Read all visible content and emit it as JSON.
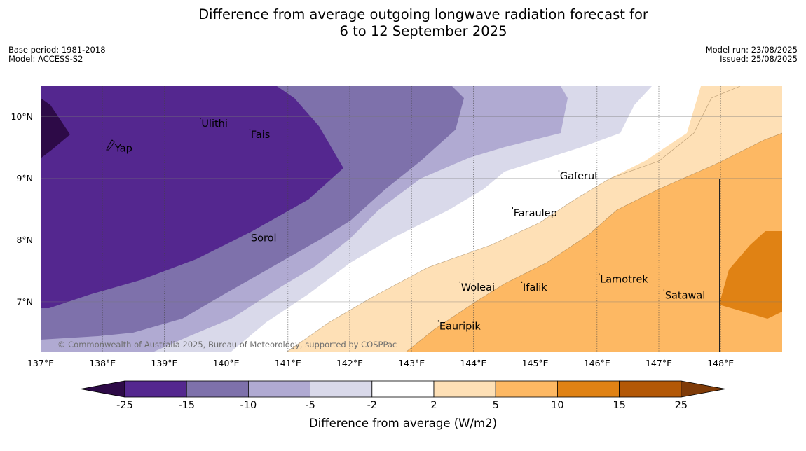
{
  "title_line1": "Difference from average outgoing longwave radiation forecast for",
  "title_line2": "6 to 12 September 2025",
  "base_period": "Base period: 1981-2018",
  "model": "Model: ACCESS-S2",
  "model_run": "Model run: 23/08/2025",
  "issued": "Issued: 25/08/2025",
  "copyright": "© Commonwealth of Australia 2025, Bureau of Meteorology, supported by COSPPac",
  "map": {
    "lon_range": [
      137,
      149
    ],
    "lat_range": [
      6.2,
      10.5
    ],
    "lon_ticks": [
      "137°E",
      "138°E",
      "139°E",
      "140°E",
      "141°E",
      "142°E",
      "143°E",
      "144°E",
      "145°E",
      "146°E",
      "147°E",
      "148°E"
    ],
    "lat_ticks": [
      "10°N",
      "9°N",
      "8°N",
      "7°N"
    ],
    "places": [
      {
        "name": "Yap",
        "lon": 138.2,
        "lat": 9.5
      },
      {
        "name": "Ulithi",
        "lon": 139.6,
        "lat": 9.9
      },
      {
        "name": "Fais",
        "lon": 140.4,
        "lat": 9.72
      },
      {
        "name": "Gaferut",
        "lon": 145.4,
        "lat": 9.05
      },
      {
        "name": "Faraulep",
        "lon": 144.65,
        "lat": 8.45
      },
      {
        "name": "Sorol",
        "lon": 140.4,
        "lat": 8.05
      },
      {
        "name": "Lamotrek",
        "lon": 146.05,
        "lat": 7.38
      },
      {
        "name": "Woleai",
        "lon": 143.8,
        "lat": 7.25
      },
      {
        "name": "Ifalik",
        "lon": 144.8,
        "lat": 7.25
      },
      {
        "name": "Satawal",
        "lon": 147.1,
        "lat": 7.12
      },
      {
        "name": "Eauripik",
        "lon": 143.45,
        "lat": 6.62
      }
    ]
  },
  "colorbar": {
    "label": "Difference from average (W/m2)",
    "ticks": [
      "-25",
      "-15",
      "-10",
      "-5",
      "-2",
      "2",
      "5",
      "10",
      "15",
      "25"
    ],
    "colors": {
      "below_min": "#2d0a47",
      "c1": "#54278f",
      "c2": "#7e71ab",
      "c3": "#b0aad2",
      "c4": "#d9d9ea",
      "c5": "#ffffff",
      "c6": "#fee0b6",
      "c7": "#fdb863",
      "c8": "#e08214",
      "c9": "#b35806",
      "above_max": "#7f3b08"
    }
  }
}
